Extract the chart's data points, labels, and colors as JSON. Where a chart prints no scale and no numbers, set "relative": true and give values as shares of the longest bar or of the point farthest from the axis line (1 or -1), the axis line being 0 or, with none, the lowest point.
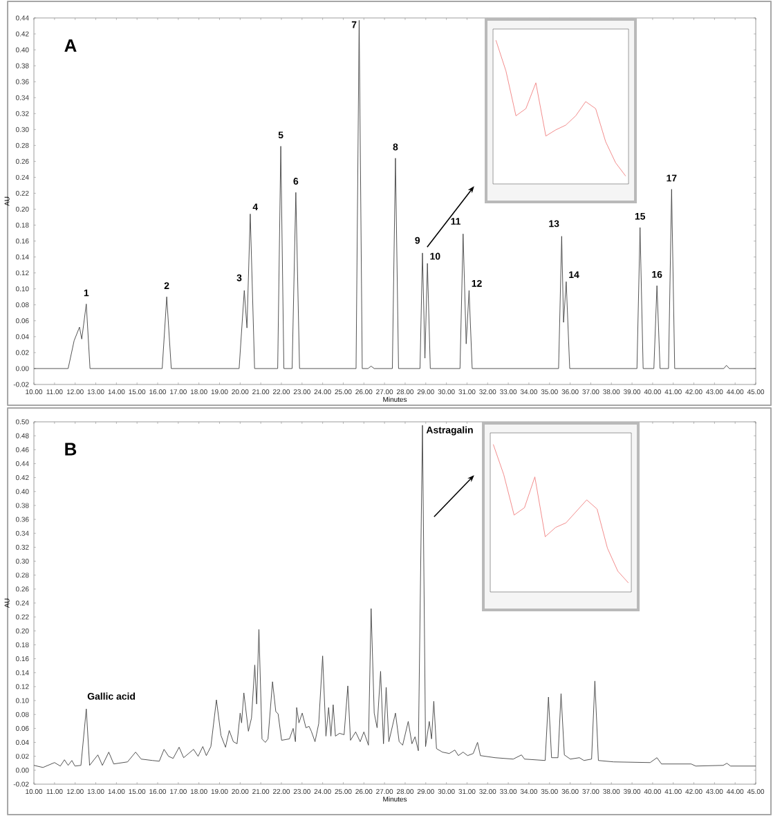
{
  "chart_data": [
    {
      "type": "line",
      "title": "A",
      "xlabel": "Minutes",
      "ylabel": "AU",
      "x": [
        10,
        11.66,
        11.95,
        12.21,
        12.32,
        12.54,
        12.72,
        16.22,
        16.44,
        16.66,
        19.95,
        20.2,
        20.33,
        20.49,
        20.7,
        21.82,
        21.97,
        22.12,
        22.52,
        22.7,
        22.88,
        25.62,
        25.77,
        25.92,
        26.2,
        26.35,
        26.5,
        27.38,
        27.53,
        27.68,
        28.72,
        28.84,
        28.96,
        29.08,
        29.22,
        30.66,
        30.81,
        30.96,
        31.1,
        31.25,
        35.44,
        35.59,
        35.68,
        35.81,
        35.98,
        39.24,
        39.39,
        39.54,
        40.06,
        40.21,
        40.36,
        40.77,
        40.92,
        41.07,
        43.45,
        43.58,
        43.72,
        45
      ],
      "series": [
        {
          "color": "#404040",
          "values": [
            0,
            0,
            0.035,
            0.052,
            0.037,
            0.081,
            0,
            0,
            0.09,
            0,
            0,
            0.098,
            0.051,
            0.194,
            0,
            0,
            0.279,
            0,
            0,
            0.221,
            0,
            0,
            0.437,
            0,
            0,
            0.003,
            0,
            0,
            0.264,
            0,
            0,
            0.145,
            0.013,
            0.132,
            0,
            0,
            0.169,
            0.031,
            0.098,
            0,
            0,
            0.166,
            0.058,
            0.109,
            0,
            0,
            0.177,
            0,
            0,
            0.104,
            0,
            0,
            0.225,
            0,
            0,
            0.004,
            0,
            0
          ]
        }
      ],
      "xlim": [
        10,
        45
      ],
      "xticks": [
        {
          "value": 10,
          "label": "10.00"
        },
        {
          "value": 11,
          "label": "11.00"
        },
        {
          "value": 12,
          "label": "12.00"
        },
        {
          "value": 13,
          "label": "13.00"
        },
        {
          "value": 14,
          "label": "14.00"
        },
        {
          "value": 15,
          "label": "15.00"
        },
        {
          "value": 16,
          "label": "16.00"
        },
        {
          "value": 17,
          "label": "17.00"
        },
        {
          "value": 18,
          "label": "18.00"
        },
        {
          "value": 19,
          "label": "19.00"
        },
        {
          "value": 20,
          "label": "20.00"
        },
        {
          "value": 21,
          "label": "21.00"
        },
        {
          "value": 22,
          "label": "22.00"
        },
        {
          "value": 23,
          "label": "23.00"
        },
        {
          "value": 24,
          "label": "24.00"
        },
        {
          "value": 25,
          "label": "25.00"
        },
        {
          "value": 26,
          "label": "26.00"
        },
        {
          "value": 27,
          "label": "27.00"
        },
        {
          "value": 28,
          "label": "28.00"
        },
        {
          "value": 29,
          "label": "29.00"
        },
        {
          "value": 30,
          "label": "30.00"
        },
        {
          "value": 31,
          "label": "31.00"
        },
        {
          "value": 32,
          "label": "32.00"
        },
        {
          "value": 33,
          "label": "33.00"
        },
        {
          "value": 34,
          "label": "34.00"
        },
        {
          "value": 35,
          "label": "35.00"
        },
        {
          "value": 36,
          "label": "36.00"
        },
        {
          "value": 37,
          "label": "37.00"
        },
        {
          "value": 38,
          "label": "38.00"
        },
        {
          "value": 39,
          "label": "39.00"
        },
        {
          "value": 40,
          "label": "40.00"
        },
        {
          "value": 41,
          "label": "41.00"
        },
        {
          "value": 42,
          "label": "42.00"
        },
        {
          "value": 43,
          "label": "43.00"
        },
        {
          "value": 44,
          "label": "44.00"
        },
        {
          "value": 45,
          "label": "45.00"
        }
      ],
      "ylim": [
        -0.02,
        0.44
      ],
      "yticks": [
        {
          "value": -0.02,
          "label": "-0.02"
        },
        {
          "value": 0,
          "label": "0.00"
        },
        {
          "value": 0.02,
          "label": "0.02"
        },
        {
          "value": 0.04,
          "label": "0.04"
        },
        {
          "value": 0.06,
          "label": "0.06"
        },
        {
          "value": 0.08,
          "label": "0.08"
        },
        {
          "value": 0.1,
          "label": "0.10"
        },
        {
          "value": 0.12,
          "label": "0.12"
        },
        {
          "value": 0.14,
          "label": "0.14"
        },
        {
          "value": 0.16,
          "label": "0.16"
        },
        {
          "value": 0.18,
          "label": "0.18"
        },
        {
          "value": 0.2,
          "label": "0.20"
        },
        {
          "value": 0.22,
          "label": "0.22"
        },
        {
          "value": 0.24,
          "label": "0.24"
        },
        {
          "value": 0.26,
          "label": "0.26"
        },
        {
          "value": 0.28,
          "label": "0.28"
        },
        {
          "value": 0.3,
          "label": "0.30"
        },
        {
          "value": 0.32,
          "label": "0.32"
        },
        {
          "value": 0.34,
          "label": "0.34"
        },
        {
          "value": 0.36,
          "label": "0.36"
        },
        {
          "value": 0.38,
          "label": "0.38"
        },
        {
          "value": 0.4,
          "label": "0.40"
        },
        {
          "value": 0.42,
          "label": "0.42"
        },
        {
          "value": 0.44,
          "label": "0.44"
        }
      ],
      "annotations": [
        {
          "text": "1",
          "x": 12.54,
          "y": 0.081
        },
        {
          "text": "2",
          "x": 16.44,
          "y": 0.09
        },
        {
          "text": "3",
          "x": 20.2,
          "y": 0.098
        },
        {
          "text": "4",
          "x": 20.49,
          "y": 0.194
        },
        {
          "text": "5",
          "x": 21.97,
          "y": 0.279
        },
        {
          "text": "6",
          "x": 22.7,
          "y": 0.221
        },
        {
          "text": "7",
          "x": 25.77,
          "y": 0.437
        },
        {
          "text": "8",
          "x": 27.53,
          "y": 0.264
        },
        {
          "text": "9",
          "x": 28.84,
          "y": 0.145
        },
        {
          "text": "10",
          "x": 29.08,
          "y": 0.132
        },
        {
          "text": "11",
          "x": 30.81,
          "y": 0.169
        },
        {
          "text": "12",
          "x": 31.1,
          "y": 0.098
        },
        {
          "text": "13",
          "x": 35.59,
          "y": 0.166
        },
        {
          "text": "14",
          "x": 35.81,
          "y": 0.109
        },
        {
          "text": "15",
          "x": 39.39,
          "y": 0.177
        },
        {
          "text": "16",
          "x": 40.21,
          "y": 0.104
        },
        {
          "text": "17",
          "x": 40.92,
          "y": 0.225
        }
      ]
    },
    {
      "type": "line",
      "relative": true,
      "categories": [
        null,
        null,
        null,
        null,
        null,
        null,
        null,
        null,
        null,
        null,
        null,
        null,
        null,
        null
      ],
      "series": [
        {
          "color": "#f08080",
          "values": [
            1.0,
            0.787,
            0.475,
            0.525,
            0.705,
            0.334,
            0.377,
            0.41,
            0.475,
            0.574,
            0.525,
            0.295,
            0.148,
            0.056
          ]
        }
      ]
    },
    {
      "type": "line",
      "title": "B",
      "xlabel": "Minutes",
      "ylabel": "AU",
      "x": [
        10.0,
        10.44,
        11.0,
        11.28,
        11.48,
        11.66,
        11.84,
        11.99,
        12.28,
        12.54,
        12.7,
        13.1,
        13.32,
        13.63,
        13.87,
        14.54,
        14.93,
        15.2,
        15.75,
        16.08,
        16.31,
        16.53,
        16.75,
        17.04,
        17.26,
        17.74,
        17.96,
        18.19,
        18.36,
        18.58,
        18.85,
        19.07,
        19.29,
        19.47,
        19.67,
        19.85,
        20.0,
        20.07,
        20.18,
        20.4,
        20.55,
        20.71,
        20.8,
        20.91,
        21.06,
        21.22,
        21.35,
        21.57,
        21.73,
        21.84,
        22.01,
        22.39,
        22.57,
        22.68,
        22.74,
        22.85,
        23.01,
        23.19,
        23.34,
        23.45,
        23.63,
        23.81,
        24.0,
        24.16,
        24.29,
        24.4,
        24.51,
        24.62,
        24.82,
        25.04,
        25.22,
        25.35,
        25.6,
        25.82,
        26.0,
        26.22,
        26.35,
        26.5,
        26.64,
        26.81,
        26.95,
        27.08,
        27.21,
        27.53,
        27.71,
        27.88,
        28.15,
        28.33,
        28.48,
        28.64,
        28.84,
        28.99,
        29.17,
        29.28,
        29.39,
        29.52,
        29.81,
        30.14,
        30.41,
        30.58,
        30.81,
        31.03,
        31.3,
        31.51,
        31.65,
        32.36,
        33.24,
        33.64,
        33.79,
        34.79,
        34.95,
        35.1,
        35.41,
        35.56,
        35.72,
        36.01,
        36.45,
        36.67,
        37.04,
        37.2,
        37.37,
        38.11,
        39.88,
        40.21,
        40.43,
        41.87,
        42.09,
        43.42,
        43.6,
        43.78,
        45.0
      ],
      "series": [
        {
          "color": "#404040",
          "values": [
            0.007,
            0.004,
            0.011,
            0.006,
            0.015,
            0.007,
            0.014,
            0.006,
            0.007,
            0.088,
            0.007,
            0.022,
            0.007,
            0.026,
            0.009,
            0.012,
            0.026,
            0.016,
            0.014,
            0.013,
            0.03,
            0.02,
            0.017,
            0.033,
            0.018,
            0.03,
            0.02,
            0.034,
            0.021,
            0.034,
            0.101,
            0.05,
            0.033,
            0.057,
            0.041,
            0.038,
            0.082,
            0.068,
            0.111,
            0.056,
            0.075,
            0.151,
            0.095,
            0.202,
            0.045,
            0.04,
            0.045,
            0.127,
            0.084,
            0.081,
            0.043,
            0.045,
            0.06,
            0.041,
            0.09,
            0.068,
            0.082,
            0.061,
            0.063,
            0.056,
            0.041,
            0.067,
            0.164,
            0.049,
            0.09,
            0.049,
            0.094,
            0.049,
            0.053,
            0.051,
            0.121,
            0.043,
            0.055,
            0.041,
            0.055,
            0.036,
            0.232,
            0.082,
            0.061,
            0.142,
            0.038,
            0.119,
            0.041,
            0.082,
            0.041,
            0.036,
            0.07,
            0.038,
            0.048,
            0.028,
            0.495,
            0.034,
            0.07,
            0.045,
            0.099,
            0.031,
            0.026,
            0.024,
            0.029,
            0.021,
            0.026,
            0.021,
            0.024,
            0.04,
            0.021,
            0.018,
            0.016,
            0.022,
            0.016,
            0.014,
            0.105,
            0.018,
            0.018,
            0.11,
            0.022,
            0.016,
            0.018,
            0.014,
            0.016,
            0.128,
            0.014,
            0.012,
            0.011,
            0.018,
            0.009,
            0.009,
            0.006,
            0.007,
            0.01,
            0.006,
            0.006
          ]
        }
      ],
      "xlim": [
        10,
        45
      ],
      "xticks": [
        {
          "value": 10,
          "label": "10.00"
        },
        {
          "value": 11,
          "label": "11.00"
        },
        {
          "value": 12,
          "label": "12.00"
        },
        {
          "value": 13,
          "label": "13.00"
        },
        {
          "value": 14,
          "label": "14.00"
        },
        {
          "value": 15,
          "label": "15.00"
        },
        {
          "value": 16,
          "label": "16.00"
        },
        {
          "value": 17,
          "label": "17.00"
        },
        {
          "value": 18,
          "label": "18.00"
        },
        {
          "value": 19,
          "label": "19.00"
        },
        {
          "value": 20,
          "label": "20.00"
        },
        {
          "value": 21,
          "label": "21.00"
        },
        {
          "value": 22,
          "label": "22.00"
        },
        {
          "value": 23,
          "label": "23.00"
        },
        {
          "value": 24,
          "label": "24.00"
        },
        {
          "value": 25,
          "label": "25.00"
        },
        {
          "value": 26,
          "label": "26.00"
        },
        {
          "value": 27,
          "label": "27.00"
        },
        {
          "value": 28,
          "label": "28.00"
        },
        {
          "value": 29,
          "label": "29.00"
        },
        {
          "value": 30,
          "label": "30.00"
        },
        {
          "value": 31,
          "label": "31.00"
        },
        {
          "value": 32,
          "label": "32.00"
        },
        {
          "value": 33,
          "label": "33.00"
        },
        {
          "value": 34,
          "label": "34.00"
        },
        {
          "value": 35,
          "label": "35.00"
        },
        {
          "value": 36,
          "label": "36.00"
        },
        {
          "value": 37,
          "label": "37.00"
        },
        {
          "value": 38,
          "label": "38.00"
        },
        {
          "value": 39,
          "label": "39.00"
        },
        {
          "value": 40,
          "label": "40.00"
        },
        {
          "value": 41,
          "label": "41.00"
        },
        {
          "value": 42,
          "label": "42.00"
        },
        {
          "value": 43,
          "label": "43.00"
        },
        {
          "value": 44,
          "label": "44.00"
        },
        {
          "value": 45,
          "label": "45.00"
        }
      ],
      "ylim": [
        -0.02,
        0.5
      ],
      "yticks": [
        {
          "value": -0.02,
          "label": "-0.02"
        },
        {
          "value": 0,
          "label": "0.00"
        },
        {
          "value": 0.02,
          "label": "0.02"
        },
        {
          "value": 0.04,
          "label": "0.04"
        },
        {
          "value": 0.06,
          "label": "0.06"
        },
        {
          "value": 0.08,
          "label": "0.08"
        },
        {
          "value": 0.1,
          "label": "0.10"
        },
        {
          "value": 0.12,
          "label": "0.12"
        },
        {
          "value": 0.14,
          "label": "0.14"
        },
        {
          "value": 0.16,
          "label": "0.16"
        },
        {
          "value": 0.18,
          "label": "0.18"
        },
        {
          "value": 0.2,
          "label": "0.20"
        },
        {
          "value": 0.22,
          "label": "0.22"
        },
        {
          "value": 0.24,
          "label": "0.24"
        },
        {
          "value": 0.26,
          "label": "0.26"
        },
        {
          "value": 0.28,
          "label": "0.28"
        },
        {
          "value": 0.3,
          "label": "0.30"
        },
        {
          "value": 0.32,
          "label": "0.32"
        },
        {
          "value": 0.34,
          "label": "0.34"
        },
        {
          "value": 0.36,
          "label": "0.36"
        },
        {
          "value": 0.38,
          "label": "0.38"
        },
        {
          "value": 0.4,
          "label": "0.40"
        },
        {
          "value": 0.42,
          "label": "0.42"
        },
        {
          "value": 0.44,
          "label": "0.44"
        },
        {
          "value": 0.46,
          "label": "0.46"
        },
        {
          "value": 0.48,
          "label": "0.48"
        },
        {
          "value": 0.5,
          "label": "0.50"
        }
      ],
      "annotations": [
        {
          "text": "Gallic acid",
          "x": 12.54,
          "y": 0.088
        },
        {
          "text": "Astragalin",
          "x": 28.84,
          "y": 0.495
        }
      ]
    },
    {
      "type": "line",
      "relative": true,
      "categories": [
        null,
        null,
        null,
        null,
        null,
        null,
        null,
        null,
        null,
        null,
        null,
        null,
        null,
        null
      ],
      "series": [
        {
          "color": "#f08080",
          "values": [
            1.0,
            0.797,
            0.522,
            0.572,
            0.781,
            0.375,
            0.438,
            0.469,
            0.547,
            0.625,
            0.563,
            0.297,
            0.141,
            0.063
          ]
        }
      ]
    }
  ]
}
